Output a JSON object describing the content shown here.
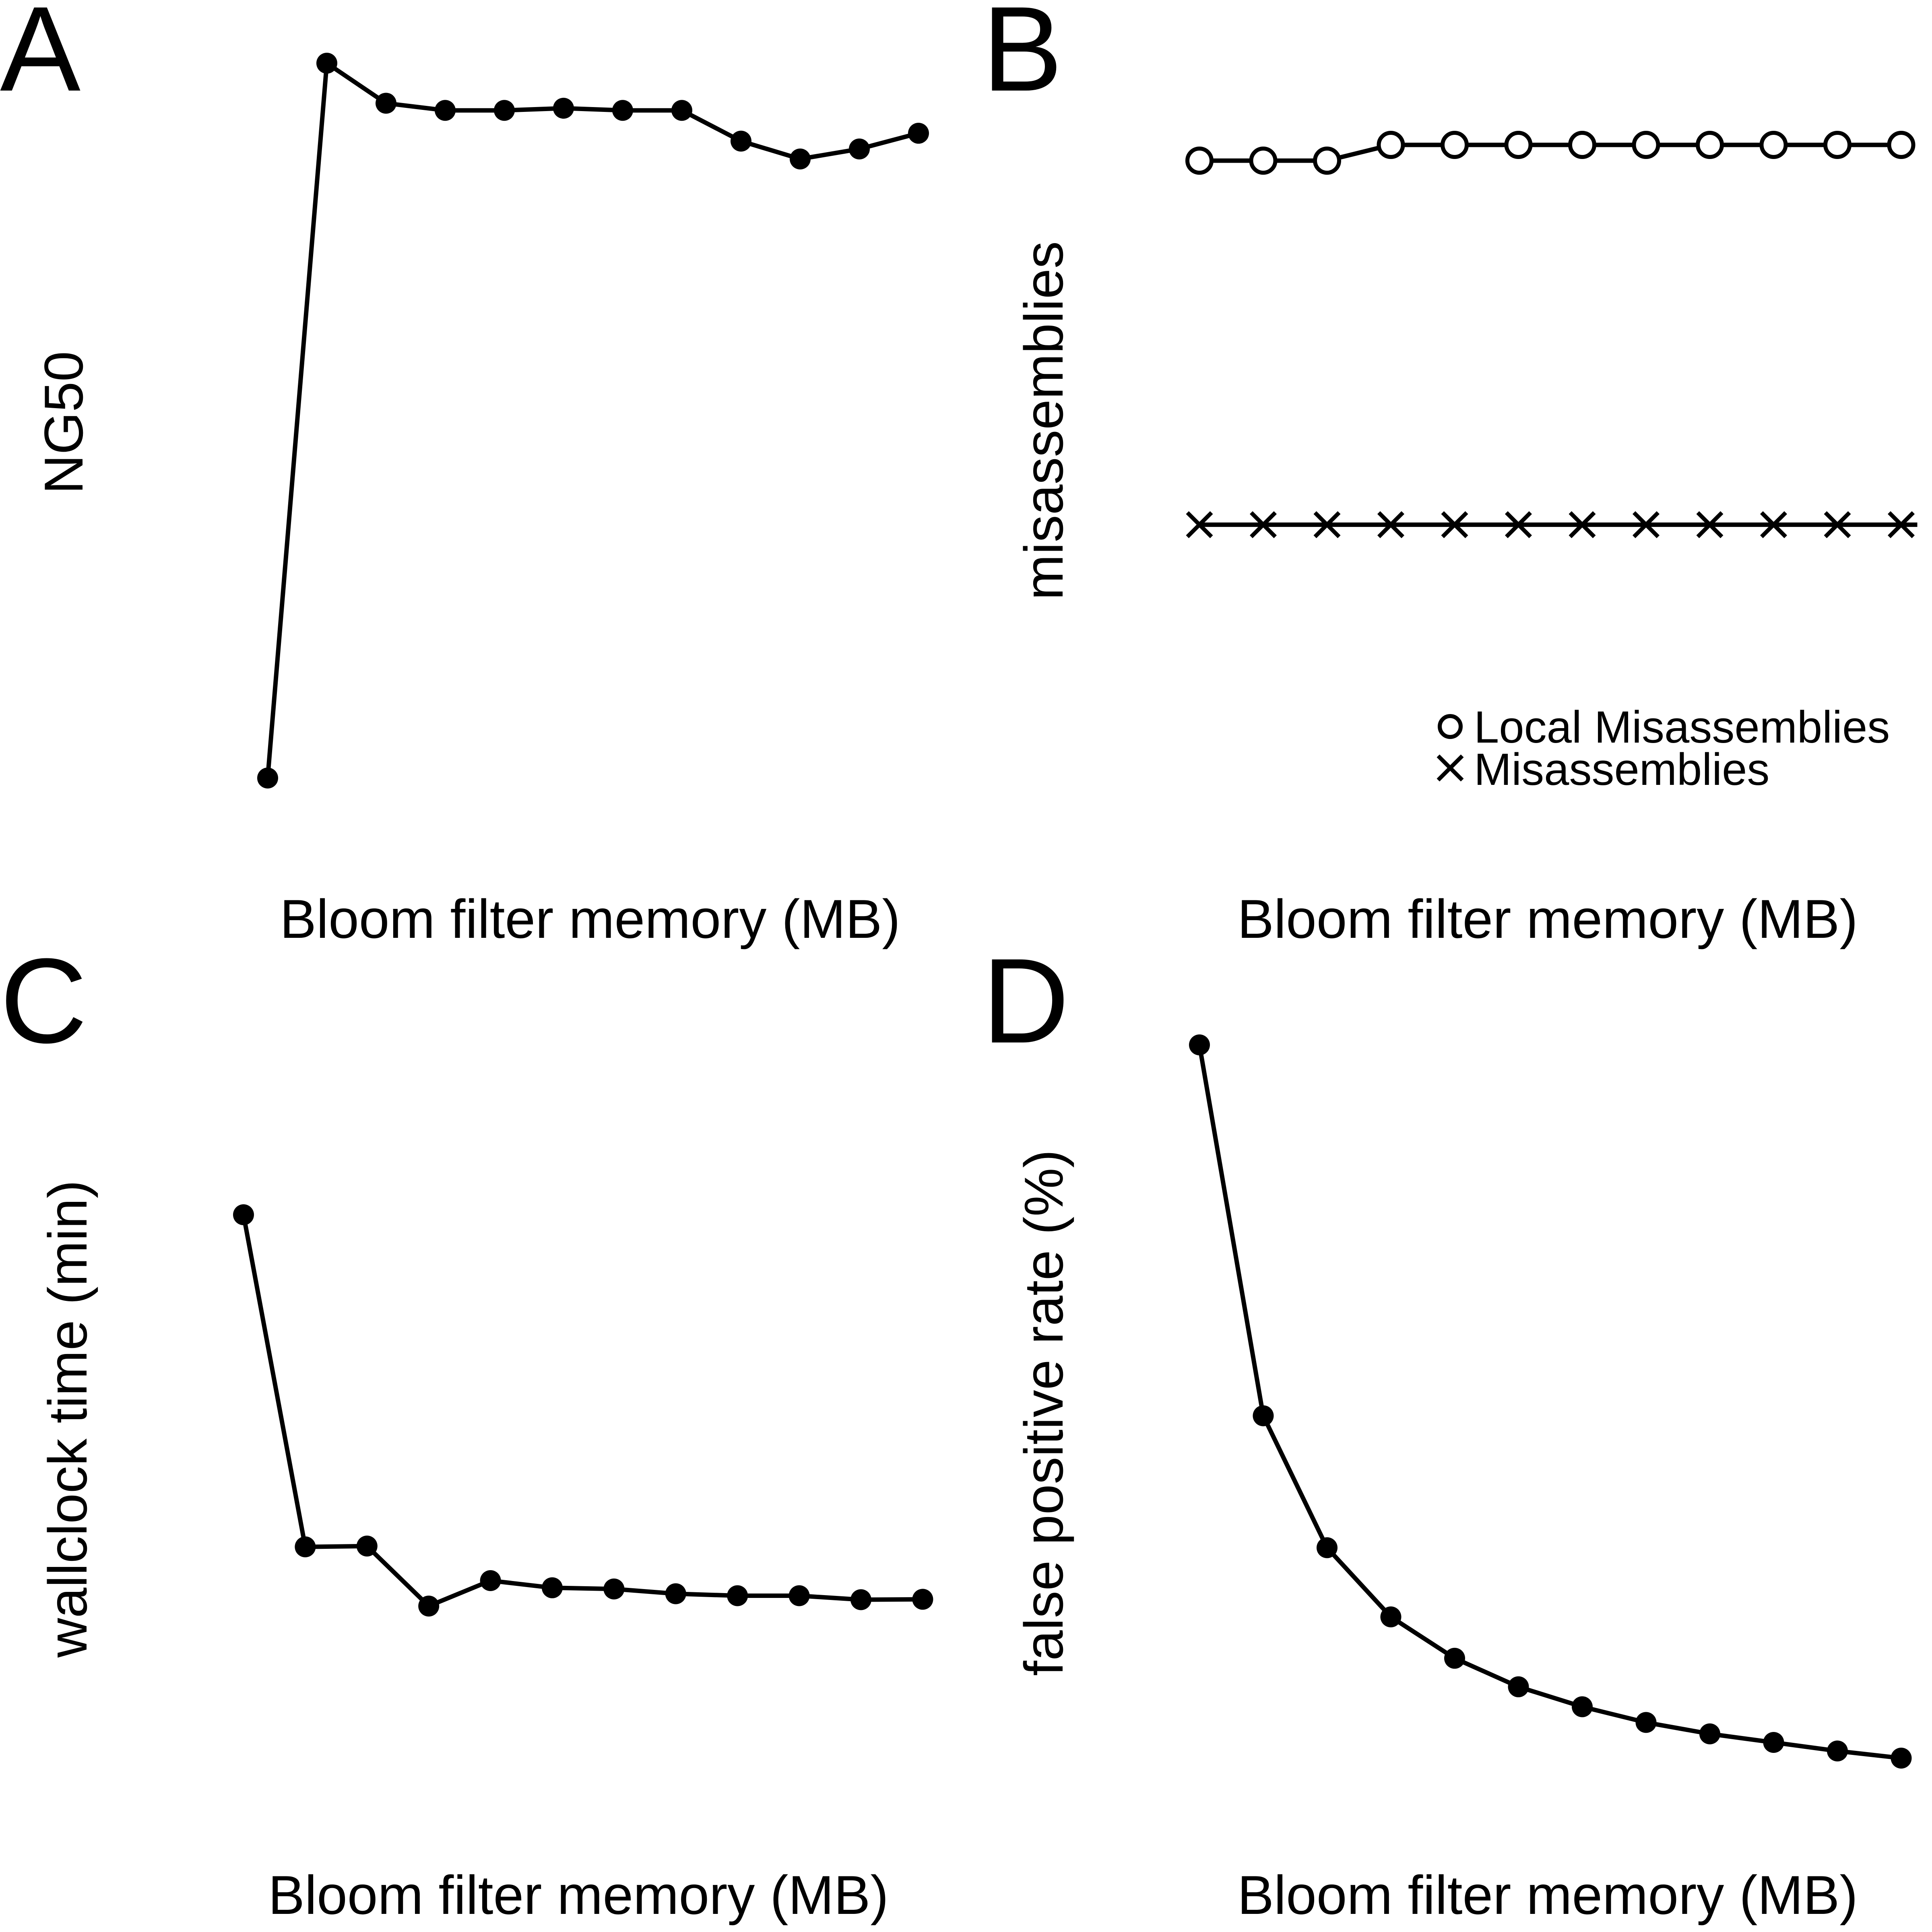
{
  "chart_data": [
    {
      "panel": "A",
      "type": "line",
      "xlabel": "Bloom filter memory (MB)",
      "ylabel": "NG50",
      "series": [
        {
          "marker": "filled-circle",
          "values": [
            0.0,
            1.0,
            0.944,
            0.934,
            0.934,
            0.937,
            0.934,
            0.934,
            0.891,
            0.866,
            0.88,
            0.902
          ]
        }
      ]
    },
    {
      "panel": "B",
      "type": "line",
      "xlabel": "Bloom filter memory (MB)",
      "ylabel": "misassemblies",
      "series": [
        {
          "name": "Local Misassemblies",
          "marker": "open-circle",
          "values": [
            0.965,
            0.965,
            0.965,
            1.0,
            1.0,
            1.0,
            1.0,
            1.0,
            1.0,
            1.0,
            1.0,
            1.0
          ]
        },
        {
          "name": "Misassemblies",
          "marker": "cross",
          "values": [
            0.156,
            0.156,
            0.156,
            0.156,
            0.156,
            0.156,
            0.156,
            0.156,
            0.156,
            0.156,
            0.156,
            0.156
          ]
        }
      ],
      "legend": {
        "position": "bottom-right",
        "entries": [
          {
            "label": "Local Misassemblies",
            "marker": "open-circle"
          },
          {
            "label": "Misassemblies",
            "marker": "cross"
          }
        ]
      }
    },
    {
      "panel": "C",
      "type": "line",
      "xlabel": "Bloom filter memory (MB)",
      "ylabel": "wallclock time (min)",
      "series": [
        {
          "marker": "filled-circle",
          "values": [
            1.0,
            0.164,
            0.166,
            0.015,
            0.079,
            0.061,
            0.058,
            0.046,
            0.041,
            0.041,
            0.031,
            0.032
          ]
        }
      ]
    },
    {
      "panel": "D",
      "type": "line",
      "xlabel": "Bloom filter memory (MB)",
      "ylabel": "false positive rate (%)",
      "series": [
        {
          "marker": "filled-circle",
          "values": [
            1.0,
            0.48,
            0.295,
            0.198,
            0.14,
            0.1,
            0.072,
            0.05,
            0.034,
            0.022,
            0.01,
            0.0
          ]
        }
      ]
    }
  ]
}
